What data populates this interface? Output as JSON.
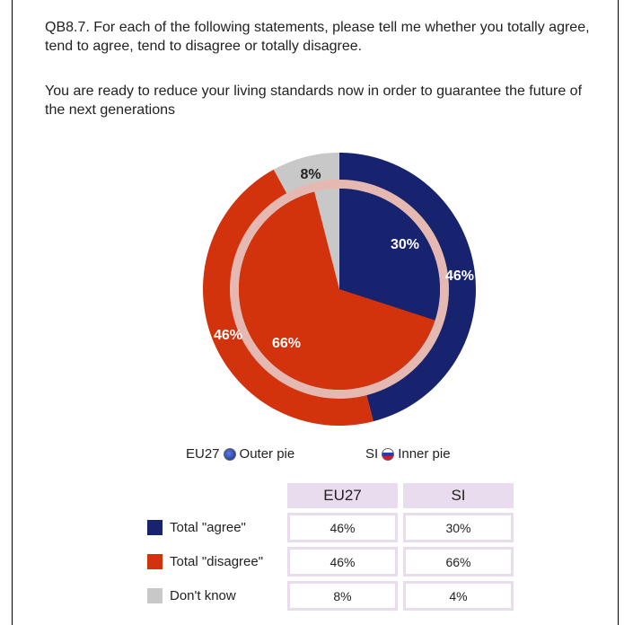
{
  "question": "QB8.7. For each of the following statements, please tell me whether you totally agree, tend to agree, tend to disagree or totally disagree.",
  "statement": "You are ready to reduce your living standards now in order to guarantee the future of the next generations",
  "colors": {
    "agree": "#182370",
    "disagree": "#d2330c",
    "dont_know": "#c8c8c8",
    "ring": "#e6b8b2"
  },
  "legend": {
    "outer_code": "EU27",
    "outer_label": "Outer pie",
    "outer_icon": "eu-flag-icon",
    "inner_code": "SI",
    "inner_label": "Inner pie",
    "inner_icon": "si-flag-icon"
  },
  "chart_data": {
    "type": "pie",
    "categories": [
      "Total \"agree\"",
      "Total \"disagree\"",
      "Don't know"
    ],
    "series": [
      {
        "name": "EU27",
        "ring": "outer",
        "values": [
          46,
          46,
          8
        ],
        "labels": [
          "46%",
          "46%",
          "8%"
        ]
      },
      {
        "name": "SI",
        "ring": "inner",
        "values": [
          30,
          66,
          4
        ],
        "labels": [
          "30%",
          "66%",
          ""
        ]
      }
    ]
  },
  "table": {
    "headers": [
      "EU27",
      "SI"
    ],
    "rows": [
      {
        "label": "Total \"agree\"",
        "eu27": "46%",
        "si": "30%"
      },
      {
        "label": "Total \"disagree\"",
        "eu27": "46%",
        "si": "66%"
      },
      {
        "label": "Don't know",
        "eu27": "8%",
        "si": "4%"
      }
    ]
  }
}
